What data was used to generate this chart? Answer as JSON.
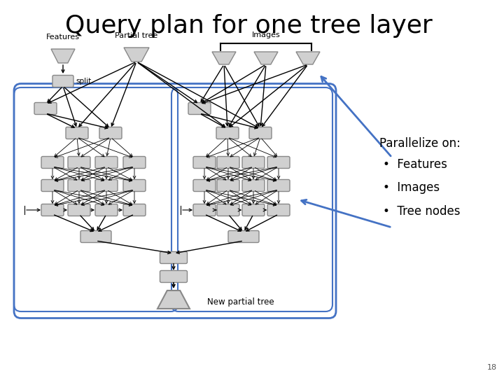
{
  "title": "Query plan for one tree layer",
  "title_fontsize": 26,
  "background_color": "#ffffff",
  "node_color": "#d0d0d0",
  "node_edge_color": "#888888",
  "border_color": "#4472c4",
  "text_color": "#000000",
  "parallelize_text": "Parallelize on:",
  "bullet_items": [
    "Features",
    "Images",
    "Tree nodes"
  ],
  "labels": {
    "features": "Features",
    "partial_tree": "Partial tree",
    "images": "Images",
    "split": "split",
    "new_partial_tree": "New partial tree"
  },
  "page_number": "18"
}
